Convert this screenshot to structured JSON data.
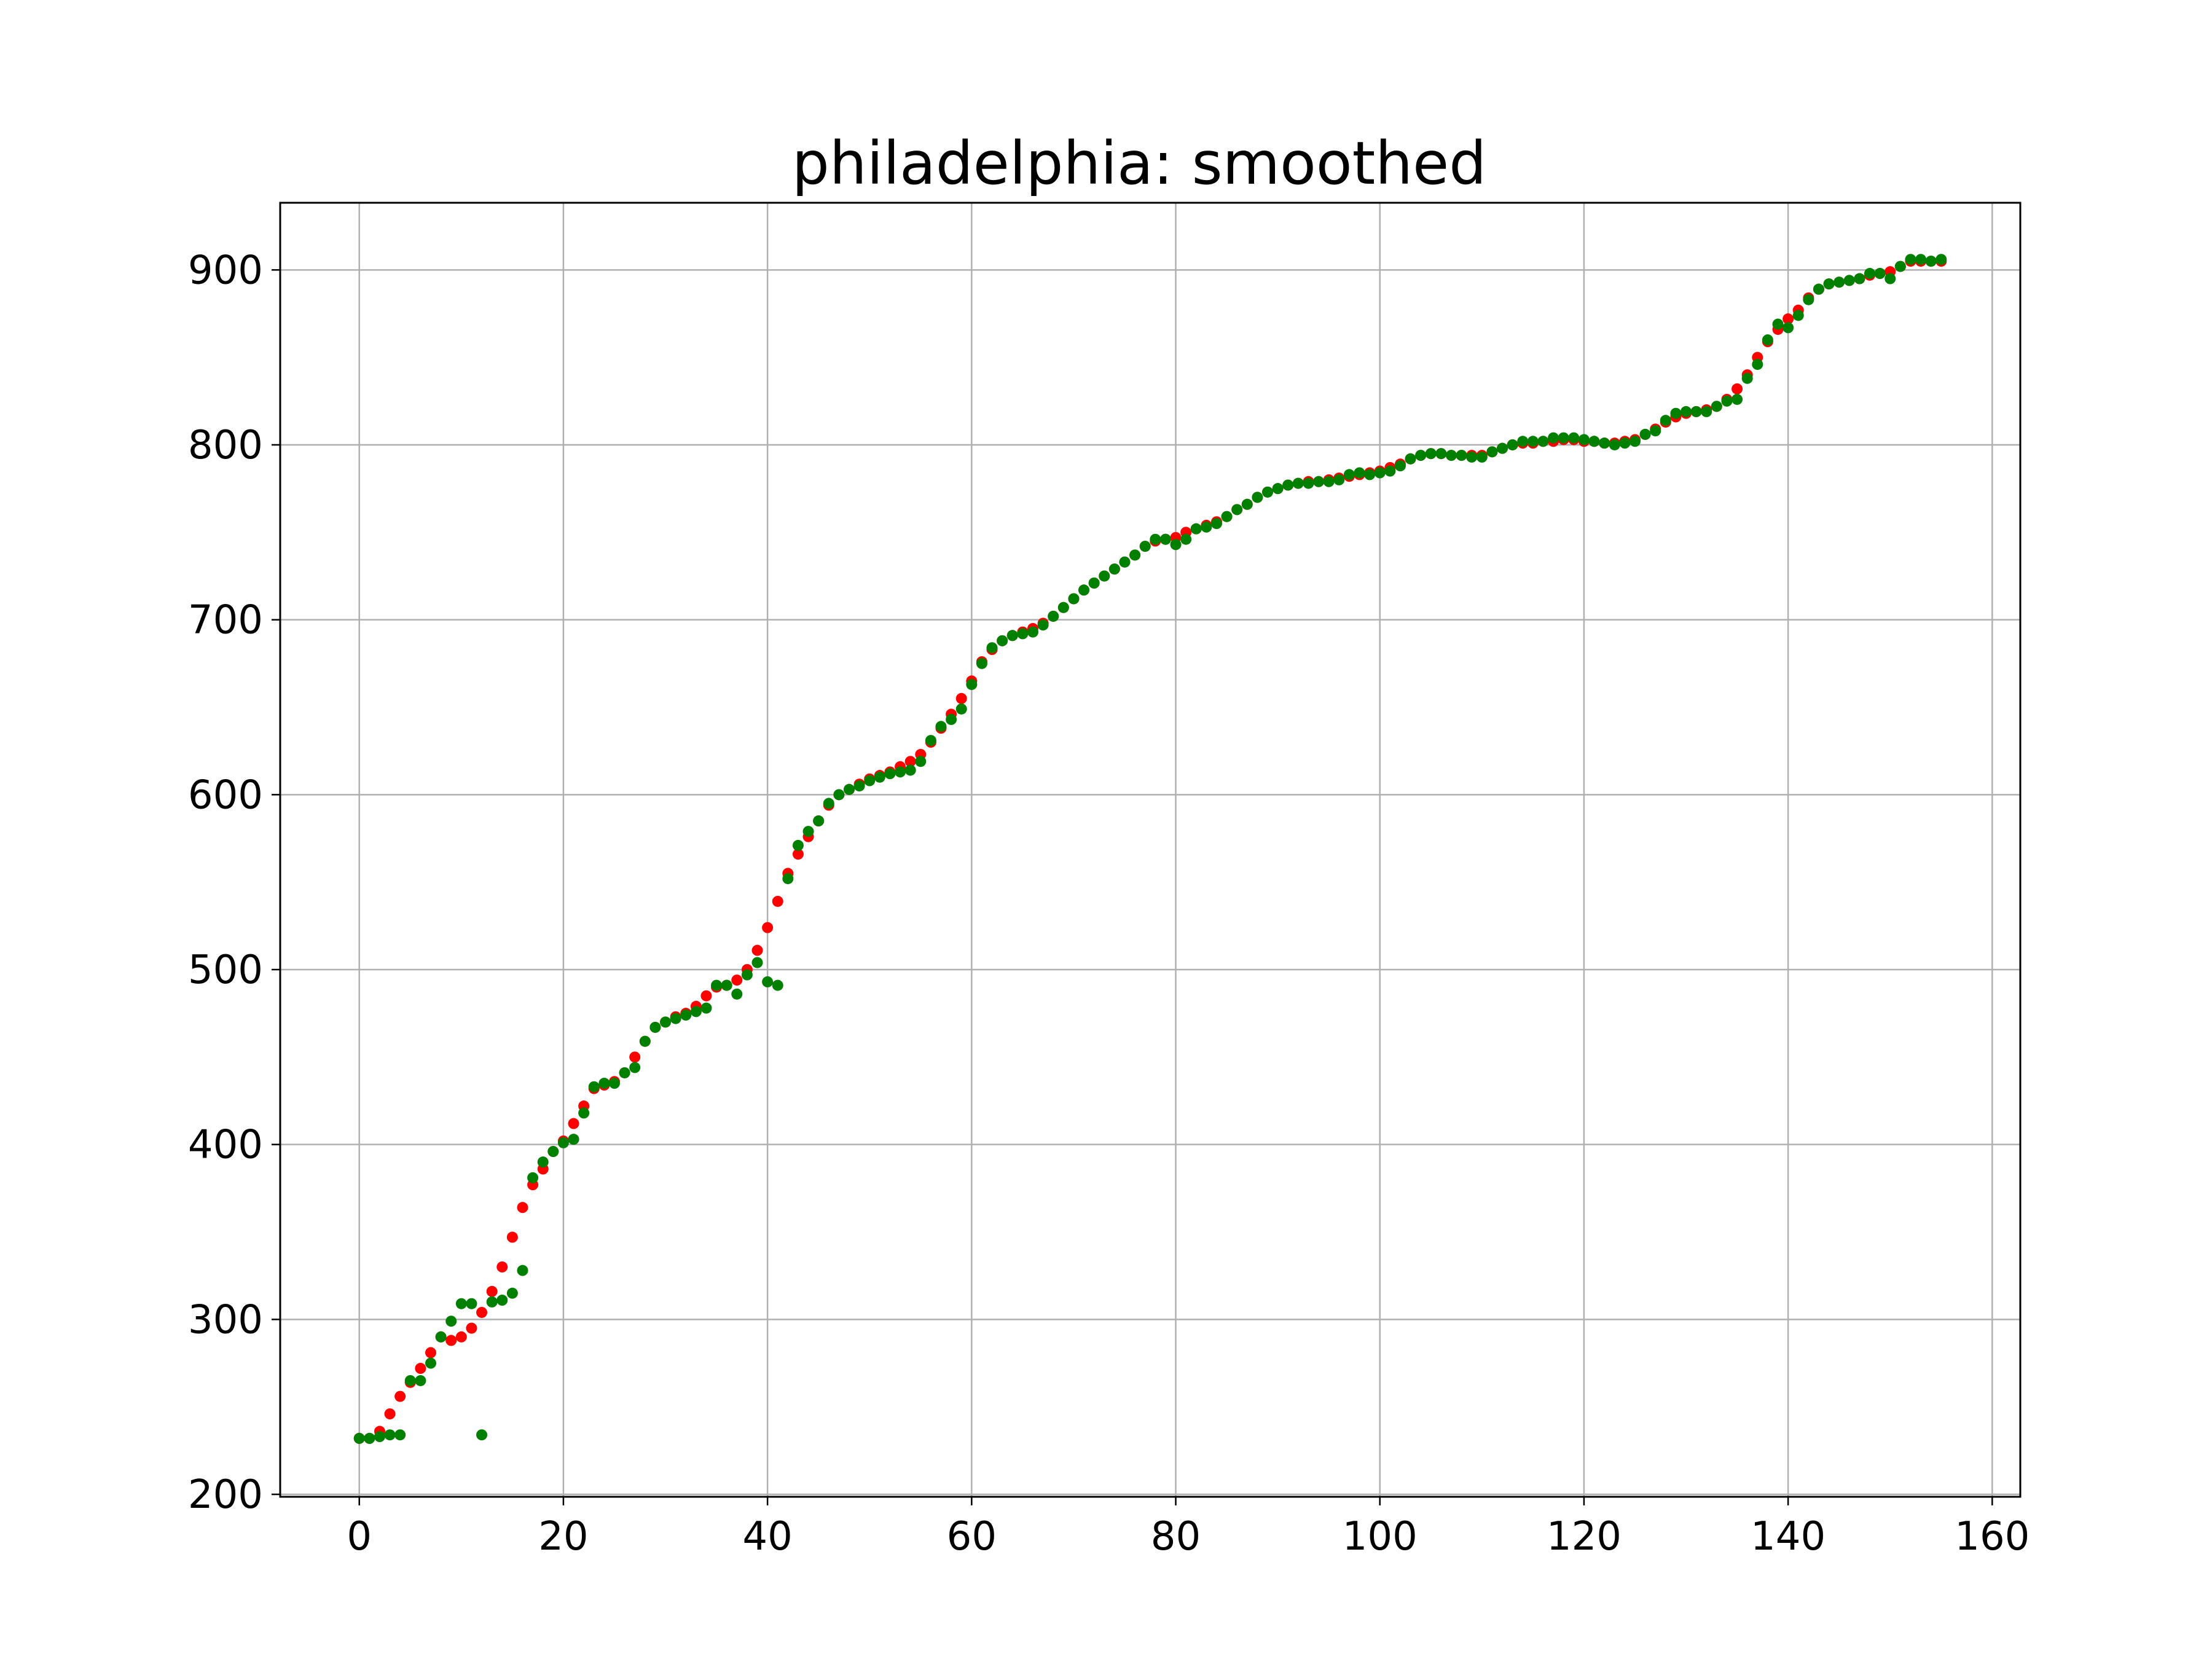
{
  "chart_data": {
    "type": "scatter",
    "title": "philadelphia: smoothed",
    "xlabel": "",
    "ylabel": "",
    "xlim": [
      -7.75,
      162.75
    ],
    "ylim": [
      198.6,
      938.4
    ],
    "xticks": [
      0,
      20,
      40,
      60,
      80,
      100,
      120,
      140,
      160
    ],
    "yticks": [
      200,
      300,
      400,
      500,
      600,
      700,
      800,
      900
    ],
    "grid": true,
    "legend": "none",
    "colors": {
      "smoothed": "#ff0000",
      "raw": "#008000",
      "grid": "#b0b0b0",
      "axes": "#000000"
    },
    "series": [
      {
        "values": [
          [
            0,
            232
          ],
          [
            1,
            232
          ],
          [
            2,
            236
          ],
          [
            3,
            246
          ],
          [
            4,
            256
          ],
          [
            5,
            264
          ],
          [
            6,
            272
          ],
          [
            7,
            281
          ],
          [
            8,
            290
          ],
          [
            9,
            288
          ],
          [
            10,
            290
          ],
          [
            11,
            295
          ],
          [
            12,
            304
          ],
          [
            13,
            316
          ],
          [
            14,
            330
          ],
          [
            15,
            347
          ],
          [
            16,
            364
          ],
          [
            17,
            377
          ],
          [
            18,
            386
          ],
          [
            19,
            396
          ],
          [
            20,
            402
          ],
          [
            21,
            412
          ],
          [
            22,
            422
          ],
          [
            23,
            432
          ],
          [
            24,
            434
          ],
          [
            25,
            436
          ],
          [
            26,
            441
          ],
          [
            27,
            450
          ],
          [
            28,
            459
          ],
          [
            29,
            467
          ],
          [
            30,
            470
          ],
          [
            31,
            473
          ],
          [
            32,
            475
          ],
          [
            33,
            479
          ],
          [
            34,
            485
          ],
          [
            35,
            490
          ],
          [
            36,
            491
          ],
          [
            37,
            494
          ],
          [
            38,
            500
          ],
          [
            39,
            511
          ],
          [
            40,
            524
          ],
          [
            41,
            539
          ],
          [
            42,
            555
          ],
          [
            43,
            566
          ],
          [
            44,
            576
          ],
          [
            45,
            585
          ],
          [
            46,
            594
          ],
          [
            47,
            600
          ],
          [
            48,
            603
          ],
          [
            49,
            606
          ],
          [
            50,
            609
          ],
          [
            51,
            611
          ],
          [
            52,
            613
          ],
          [
            53,
            616
          ],
          [
            54,
            619
          ],
          [
            55,
            623
          ],
          [
            56,
            630
          ],
          [
            57,
            638
          ],
          [
            58,
            646
          ],
          [
            59,
            655
          ],
          [
            60,
            665
          ],
          [
            61,
            676
          ],
          [
            62,
            683
          ],
          [
            63,
            688
          ],
          [
            64,
            691
          ],
          [
            65,
            693
          ],
          [
            66,
            695
          ],
          [
            67,
            698
          ],
          [
            68,
            702
          ],
          [
            69,
            707
          ],
          [
            70,
            712
          ],
          [
            71,
            717
          ],
          [
            72,
            721
          ],
          [
            73,
            725
          ],
          [
            74,
            729
          ],
          [
            75,
            733
          ],
          [
            76,
            737
          ],
          [
            77,
            742
          ],
          [
            78,
            745
          ],
          [
            79,
            746
          ],
          [
            80,
            747
          ],
          [
            81,
            750
          ],
          [
            82,
            752
          ],
          [
            83,
            754
          ],
          [
            84,
            756
          ],
          [
            85,
            759
          ],
          [
            86,
            763
          ],
          [
            87,
            766
          ],
          [
            88,
            770
          ],
          [
            89,
            773
          ],
          [
            90,
            775
          ],
          [
            91,
            777
          ],
          [
            92,
            778
          ],
          [
            93,
            779
          ],
          [
            94,
            779
          ],
          [
            95,
            780
          ],
          [
            96,
            781
          ],
          [
            97,
            782
          ],
          [
            98,
            783
          ],
          [
            99,
            784
          ],
          [
            100,
            785
          ],
          [
            101,
            787
          ],
          [
            102,
            789
          ],
          [
            103,
            792
          ],
          [
            104,
            794
          ],
          [
            105,
            795
          ],
          [
            106,
            795
          ],
          [
            107,
            794
          ],
          [
            108,
            794
          ],
          [
            109,
            794
          ],
          [
            110,
            794
          ],
          [
            111,
            796
          ],
          [
            112,
            798
          ],
          [
            113,
            800
          ],
          [
            114,
            801
          ],
          [
            115,
            801
          ],
          [
            116,
            802
          ],
          [
            117,
            802
          ],
          [
            118,
            803
          ],
          [
            119,
            803
          ],
          [
            120,
            802
          ],
          [
            121,
            802
          ],
          [
            122,
            801
          ],
          [
            123,
            801
          ],
          [
            124,
            802
          ],
          [
            125,
            803
          ],
          [
            126,
            806
          ],
          [
            127,
            809
          ],
          [
            128,
            813
          ],
          [
            129,
            816
          ],
          [
            130,
            818
          ],
          [
            131,
            819
          ],
          [
            132,
            820
          ],
          [
            133,
            822
          ],
          [
            134,
            826
          ],
          [
            135,
            832
          ],
          [
            136,
            840
          ],
          [
            137,
            850
          ],
          [
            138,
            859
          ],
          [
            139,
            866
          ],
          [
            140,
            872
          ],
          [
            141,
            877
          ],
          [
            142,
            884
          ],
          [
            143,
            889
          ],
          [
            144,
            892
          ],
          [
            145,
            893
          ],
          [
            146,
            894
          ],
          [
            147,
            895
          ],
          [
            148,
            897
          ],
          [
            149,
            898
          ],
          [
            150,
            899
          ],
          [
            151,
            902
          ],
          [
            152,
            905
          ],
          [
            153,
            905
          ],
          [
            154,
            905
          ],
          [
            155,
            905
          ]
        ]
      },
      {
        "values": [
          [
            0,
            232
          ],
          [
            1,
            232
          ],
          [
            2,
            233
          ],
          [
            3,
            234
          ],
          [
            4,
            234
          ],
          [
            5,
            265
          ],
          [
            6,
            265
          ],
          [
            7,
            275
          ],
          [
            8,
            290
          ],
          [
            9,
            299
          ],
          [
            10,
            309
          ],
          [
            11,
            309
          ],
          [
            12,
            234
          ],
          [
            13,
            310
          ],
          [
            14,
            311
          ],
          [
            15,
            315
          ],
          [
            16,
            328
          ],
          [
            17,
            381
          ],
          [
            18,
            390
          ],
          [
            19,
            396
          ],
          [
            20,
            401
          ],
          [
            21,
            403
          ],
          [
            22,
            418
          ],
          [
            23,
            433
          ],
          [
            24,
            435
          ],
          [
            25,
            435
          ],
          [
            26,
            441
          ],
          [
            27,
            444
          ],
          [
            28,
            459
          ],
          [
            29,
            467
          ],
          [
            30,
            470
          ],
          [
            31,
            472
          ],
          [
            32,
            474
          ],
          [
            33,
            476
          ],
          [
            34,
            478
          ],
          [
            35,
            491
          ],
          [
            36,
            491
          ],
          [
            37,
            486
          ],
          [
            38,
            497
          ],
          [
            39,
            504
          ],
          [
            40,
            493
          ],
          [
            41,
            491
          ],
          [
            42,
            552
          ],
          [
            43,
            571
          ],
          [
            44,
            579
          ],
          [
            45,
            585
          ],
          [
            46,
            595
          ],
          [
            47,
            600
          ],
          [
            48,
            603
          ],
          [
            49,
            605
          ],
          [
            50,
            608
          ],
          [
            51,
            610
          ],
          [
            52,
            612
          ],
          [
            53,
            613
          ],
          [
            54,
            614
          ],
          [
            55,
            619
          ],
          [
            56,
            631
          ],
          [
            57,
            639
          ],
          [
            58,
            643
          ],
          [
            59,
            649
          ],
          [
            60,
            663
          ],
          [
            61,
            675
          ],
          [
            62,
            684
          ],
          [
            63,
            688
          ],
          [
            64,
            691
          ],
          [
            65,
            692
          ],
          [
            66,
            693
          ],
          [
            67,
            697
          ],
          [
            68,
            702
          ],
          [
            69,
            707
          ],
          [
            70,
            712
          ],
          [
            71,
            717
          ],
          [
            72,
            721
          ],
          [
            73,
            725
          ],
          [
            74,
            729
          ],
          [
            75,
            733
          ],
          [
            76,
            737
          ],
          [
            77,
            742
          ],
          [
            78,
            746
          ],
          [
            79,
            746
          ],
          [
            80,
            743
          ],
          [
            81,
            746
          ],
          [
            82,
            752
          ],
          [
            83,
            753
          ],
          [
            84,
            755
          ],
          [
            85,
            759
          ],
          [
            86,
            763
          ],
          [
            87,
            766
          ],
          [
            88,
            770
          ],
          [
            89,
            773
          ],
          [
            90,
            775
          ],
          [
            91,
            777
          ],
          [
            92,
            778
          ],
          [
            93,
            778
          ],
          [
            94,
            779
          ],
          [
            95,
            779
          ],
          [
            96,
            780
          ],
          [
            97,
            783
          ],
          [
            98,
            784
          ],
          [
            99,
            783
          ],
          [
            100,
            784
          ],
          [
            101,
            785
          ],
          [
            102,
            788
          ],
          [
            103,
            792
          ],
          [
            104,
            794
          ],
          [
            105,
            795
          ],
          [
            106,
            795
          ],
          [
            107,
            794
          ],
          [
            108,
            794
          ],
          [
            109,
            793
          ],
          [
            110,
            793
          ],
          [
            111,
            796
          ],
          [
            112,
            798
          ],
          [
            113,
            800
          ],
          [
            114,
            802
          ],
          [
            115,
            802
          ],
          [
            116,
            802
          ],
          [
            117,
            804
          ],
          [
            118,
            804
          ],
          [
            119,
            804
          ],
          [
            120,
            803
          ],
          [
            121,
            802
          ],
          [
            122,
            801
          ],
          [
            123,
            800
          ],
          [
            124,
            801
          ],
          [
            125,
            802
          ],
          [
            126,
            806
          ],
          [
            127,
            808
          ],
          [
            128,
            814
          ],
          [
            129,
            818
          ],
          [
            130,
            819
          ],
          [
            131,
            819
          ],
          [
            132,
            819
          ],
          [
            133,
            822
          ],
          [
            134,
            825
          ],
          [
            135,
            826
          ],
          [
            136,
            838
          ],
          [
            137,
            846
          ],
          [
            138,
            860
          ],
          [
            139,
            869
          ],
          [
            140,
            867
          ],
          [
            141,
            874
          ],
          [
            142,
            883
          ],
          [
            143,
            889
          ],
          [
            144,
            892
          ],
          [
            145,
            893
          ],
          [
            146,
            894
          ],
          [
            147,
            895
          ],
          [
            148,
            898
          ],
          [
            149,
            898
          ],
          [
            150,
            895
          ],
          [
            151,
            902
          ],
          [
            152,
            906
          ],
          [
            153,
            906
          ],
          [
            154,
            905
          ],
          [
            155,
            906
          ]
        ]
      }
    ]
  }
}
